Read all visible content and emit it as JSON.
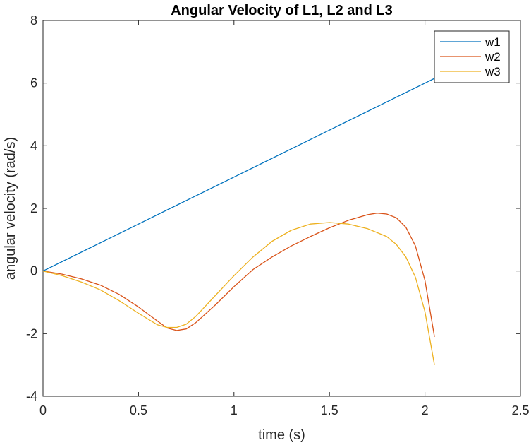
{
  "chart_data": {
    "type": "line",
    "title": "Angular Velocity of L1, L2 and L3",
    "xlabel": "time (s)",
    "ylabel": "angular velocity (rad/s)",
    "xlim": [
      0,
      2.5
    ],
    "ylim": [
      -4,
      8
    ],
    "xticks": [
      0,
      0.5,
      1,
      1.5,
      2,
      2.5
    ],
    "yticks": [
      -4,
      -2,
      0,
      2,
      4,
      6,
      8
    ],
    "xtick_labels": [
      "0",
      "0.5",
      "1",
      "1.5",
      "2",
      "2.5"
    ],
    "ytick_labels": [
      "-4",
      "-2",
      "0",
      "2",
      "4",
      "6",
      "8"
    ],
    "grid": false,
    "legend_position": "top-right",
    "series": [
      {
        "name": "w1",
        "color": "#0072BD",
        "x": [
          0,
          0.25,
          0.5,
          0.75,
          1.0,
          1.25,
          1.5,
          1.75,
          2.0,
          2.05
        ],
        "y": [
          0,
          0.75,
          1.5,
          2.25,
          3.0,
          3.75,
          4.5,
          5.25,
          6.0,
          6.15
        ]
      },
      {
        "name": "w2",
        "color": "#D95319",
        "x": [
          0,
          0.1,
          0.2,
          0.3,
          0.4,
          0.5,
          0.6,
          0.65,
          0.7,
          0.75,
          0.8,
          0.9,
          1.0,
          1.1,
          1.2,
          1.3,
          1.4,
          1.5,
          1.6,
          1.7,
          1.75,
          1.8,
          1.85,
          1.9,
          1.95,
          2.0,
          2.05
        ],
        "y": [
          0,
          -0.1,
          -0.25,
          -0.45,
          -0.75,
          -1.15,
          -1.6,
          -1.82,
          -1.9,
          -1.85,
          -1.65,
          -1.1,
          -0.5,
          0.05,
          0.45,
          0.8,
          1.1,
          1.38,
          1.62,
          1.8,
          1.85,
          1.82,
          1.7,
          1.4,
          0.8,
          -0.3,
          -2.1
        ]
      },
      {
        "name": "w3",
        "color": "#EDB120",
        "x": [
          0,
          0.1,
          0.2,
          0.3,
          0.4,
          0.5,
          0.6,
          0.65,
          0.7,
          0.75,
          0.8,
          0.9,
          1.0,
          1.1,
          1.2,
          1.3,
          1.4,
          1.5,
          1.6,
          1.7,
          1.8,
          1.85,
          1.9,
          1.95,
          2.0,
          2.05
        ],
        "y": [
          0,
          -0.15,
          -0.35,
          -0.6,
          -0.95,
          -1.35,
          -1.72,
          -1.8,
          -1.8,
          -1.7,
          -1.45,
          -0.8,
          -0.15,
          0.45,
          0.95,
          1.3,
          1.5,
          1.55,
          1.5,
          1.35,
          1.1,
          0.85,
          0.45,
          -0.2,
          -1.3,
          -3.0
        ]
      }
    ]
  }
}
